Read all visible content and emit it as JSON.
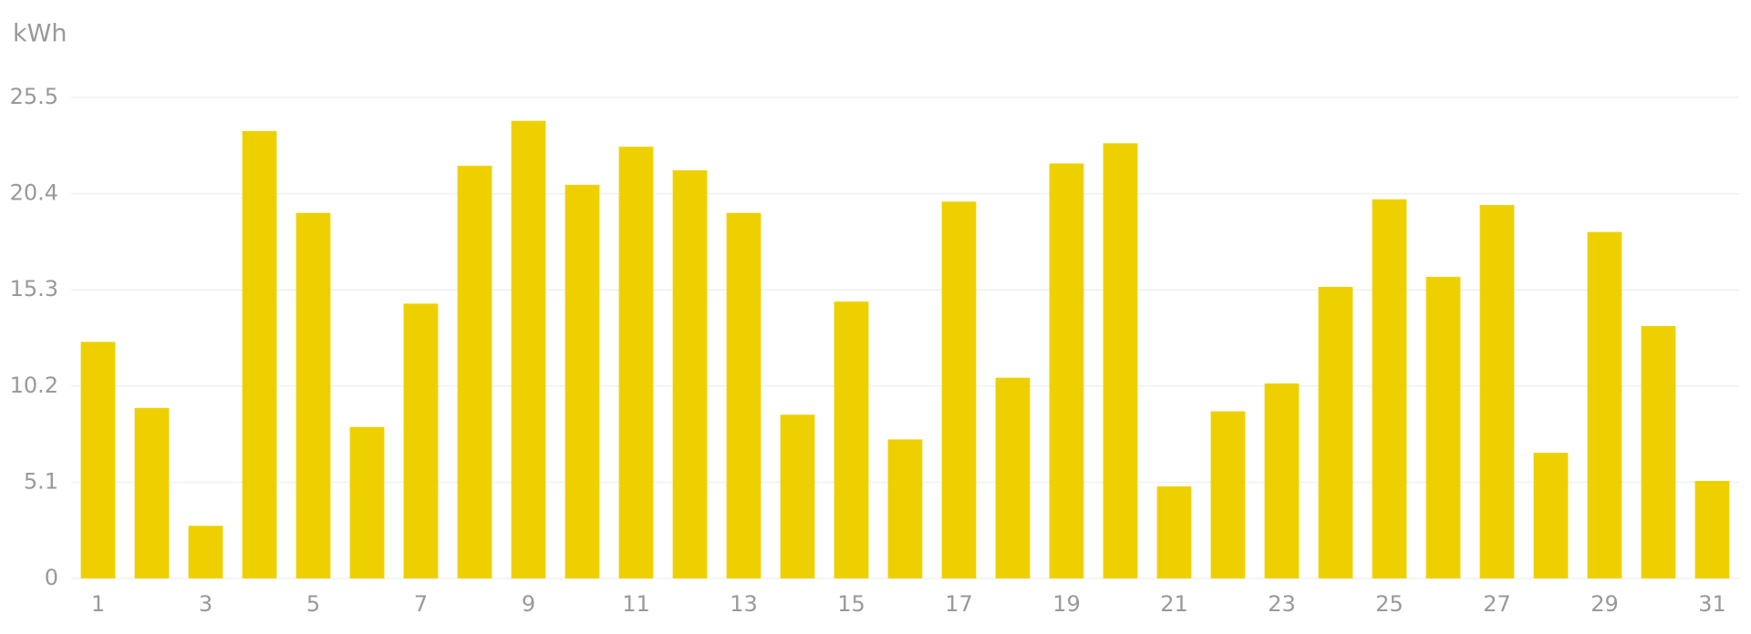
{
  "chart_data": {
    "type": "bar",
    "y_label": "kWh",
    "categories": [
      "1",
      null,
      "3",
      null,
      "5",
      null,
      "7",
      null,
      "9",
      null,
      "11",
      null,
      "13",
      null,
      "15",
      null,
      "17",
      null,
      "19",
      null,
      "21",
      null,
      "23",
      null,
      "25",
      null,
      "27",
      null,
      "29",
      null,
      "31"
    ],
    "values": [
      12.54,
      9.04,
      2.79,
      23.72,
      19.38,
      8.03,
      14.57,
      21.88,
      24.26,
      20.87,
      22.89,
      21.64,
      19.38,
      8.68,
      14.68,
      7.37,
      19.98,
      10.64,
      22.0,
      23.07,
      4.88,
      8.86,
      10.34,
      15.46,
      20.1,
      15.99,
      19.8,
      6.66,
      18.37,
      13.38,
      5.17
    ],
    "color": "#eed000",
    "ylim": [
      0,
      25.5
    ],
    "yticks": [
      0,
      5.1,
      10.2,
      15.3,
      20.4,
      25.5
    ],
    "grid": true
  }
}
